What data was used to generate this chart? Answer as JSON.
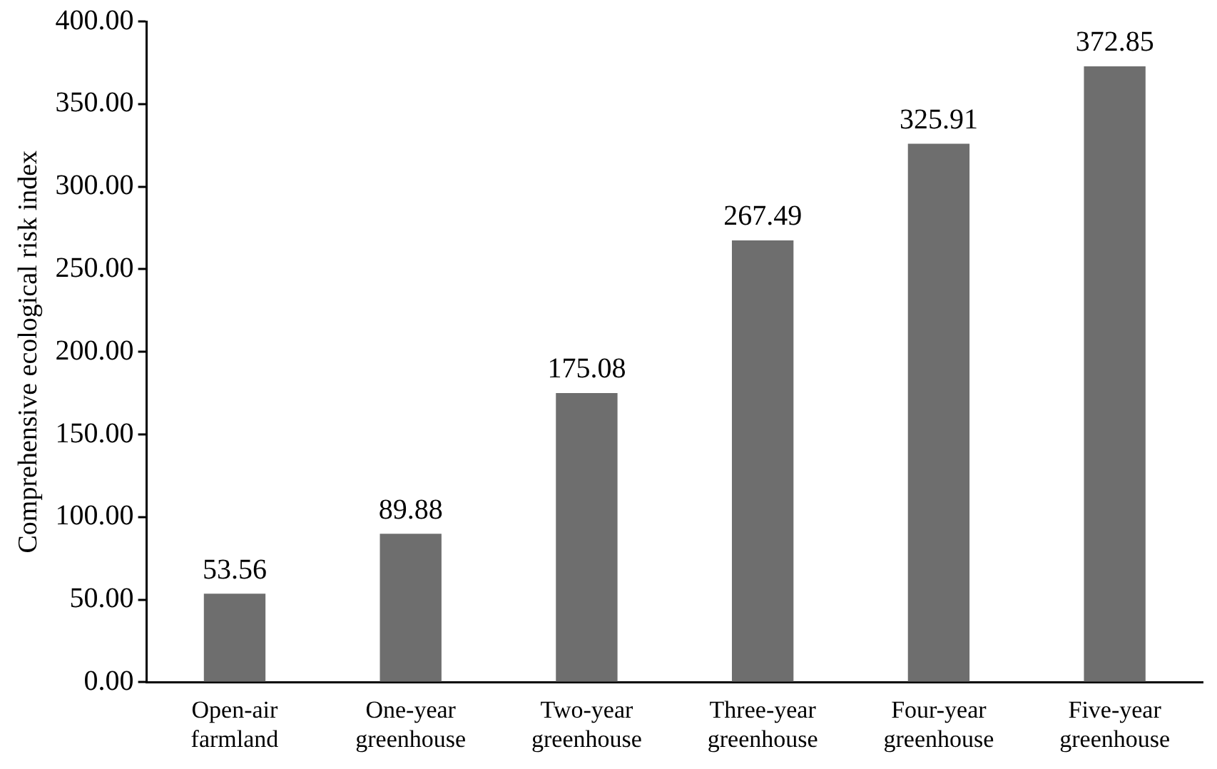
{
  "chart_data": {
    "type": "bar",
    "ylabel": "Comprehensive ecological risk index",
    "categories": [
      "Open-air farmland",
      "One-year greenhouse",
      "Two-year greenhouse",
      "Three-year greenhouse",
      "Four-year greenhouse",
      "Five-year greenhouse"
    ],
    "values": [
      53.56,
      89.88,
      175.08,
      267.49,
      325.91,
      372.85
    ],
    "color": "#6e6e6e",
    "ylim": [
      0,
      400
    ],
    "yticks": [
      {
        "value": 0,
        "label": "0.00"
      },
      {
        "value": 50,
        "label": "50.00"
      },
      {
        "value": 100,
        "label": "100.00"
      },
      {
        "value": 150,
        "label": "150.00"
      },
      {
        "value": 200,
        "label": "200.00"
      },
      {
        "value": 250,
        "label": "250.00"
      },
      {
        "value": 300,
        "label": "300.00"
      },
      {
        "value": 350,
        "label": "350.00"
      },
      {
        "value": 400,
        "label": "400.00"
      }
    ],
    "grid": false,
    "legend": false,
    "data_labels": true
  }
}
